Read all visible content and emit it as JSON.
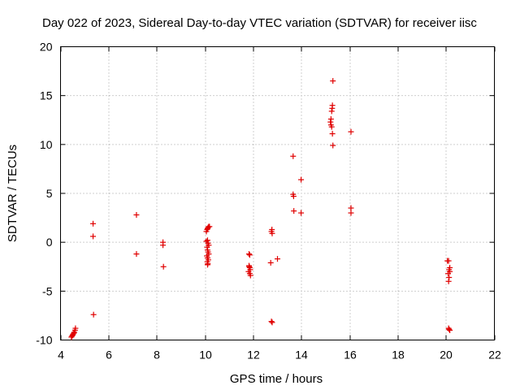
{
  "chart_data": {
    "type": "scatter",
    "title": "Day 022 of 2023, Sidereal Day-to-day VTEC variation (SDTVAR) for receiver iisc",
    "xlabel": "GPS time / hours",
    "ylabel": "SDTVAR / TECUs",
    "xlim": [
      4,
      22
    ],
    "ylim": [
      -10,
      20
    ],
    "xticks": [
      4,
      6,
      8,
      10,
      12,
      14,
      16,
      18,
      20,
      22
    ],
    "yticks": [
      -10,
      -5,
      0,
      5,
      10,
      15,
      20
    ],
    "grid": true,
    "marker": "+",
    "color": "#e00000",
    "series": [
      {
        "name": "SDTVAR",
        "points": [
          [
            4.45,
            -9.7
          ],
          [
            4.48,
            -9.6
          ],
          [
            4.5,
            -9.5
          ],
          [
            4.52,
            -9.4
          ],
          [
            4.55,
            -9.3
          ],
          [
            4.57,
            -9.2
          ],
          [
            4.6,
            -9.0
          ],
          [
            4.62,
            -8.8
          ],
          [
            5.35,
            1.9
          ],
          [
            5.35,
            0.6
          ],
          [
            5.37,
            -7.4
          ],
          [
            7.15,
            2.8
          ],
          [
            7.15,
            -1.2
          ],
          [
            8.25,
            0.0
          ],
          [
            8.25,
            -0.3
          ],
          [
            8.27,
            -2.5
          ],
          [
            10.05,
            1.1
          ],
          [
            10.08,
            1.3
          ],
          [
            10.1,
            1.4
          ],
          [
            10.12,
            1.5
          ],
          [
            10.15,
            1.6
          ],
          [
            10.18,
            1.6
          ],
          [
            10.05,
            0.1
          ],
          [
            10.1,
            0.2
          ],
          [
            10.12,
            -0.1
          ],
          [
            10.15,
            -0.3
          ],
          [
            10.08,
            -0.5
          ],
          [
            10.1,
            -0.8
          ],
          [
            10.12,
            -1.0
          ],
          [
            10.15,
            -1.2
          ],
          [
            10.07,
            -1.4
          ],
          [
            10.1,
            -1.6
          ],
          [
            10.13,
            -1.8
          ],
          [
            10.09,
            -2.0
          ],
          [
            10.11,
            -2.2
          ],
          [
            10.1,
            -2.3
          ],
          [
            11.82,
            -1.2
          ],
          [
            11.85,
            -1.3
          ],
          [
            11.82,
            -2.4
          ],
          [
            11.85,
            -2.6
          ],
          [
            11.87,
            -2.8
          ],
          [
            11.8,
            -3.0
          ],
          [
            11.85,
            -3.2
          ],
          [
            11.88,
            -3.4
          ],
          [
            11.83,
            -2.5
          ],
          [
            12.72,
            -2.1
          ],
          [
            12.75,
            1.1
          ],
          [
            12.77,
            1.3
          ],
          [
            12.78,
            0.9
          ],
          [
            12.75,
            -8.1
          ],
          [
            12.78,
            -8.2
          ],
          [
            13.0,
            -1.7
          ],
          [
            13.65,
            8.8
          ],
          [
            13.65,
            4.9
          ],
          [
            13.67,
            4.7
          ],
          [
            13.68,
            3.2
          ],
          [
            13.98,
            6.4
          ],
          [
            13.98,
            3.0
          ],
          [
            15.2,
            12.3
          ],
          [
            15.22,
            12.0
          ],
          [
            15.25,
            11.8
          ],
          [
            15.22,
            12.6
          ],
          [
            15.25,
            13.4
          ],
          [
            15.27,
            13.7
          ],
          [
            15.28,
            14.0
          ],
          [
            15.3,
            16.5
          ],
          [
            15.28,
            11.1
          ],
          [
            15.3,
            9.9
          ],
          [
            16.05,
            11.3
          ],
          [
            16.05,
            3.5
          ],
          [
            16.05,
            3.0
          ],
          [
            20.05,
            -1.9
          ],
          [
            20.1,
            -1.9
          ],
          [
            20.12,
            -2.8
          ],
          [
            20.15,
            -3.0
          ],
          [
            20.08,
            -3.2
          ],
          [
            20.12,
            -3.6
          ],
          [
            20.1,
            -4.0
          ],
          [
            20.15,
            -2.6
          ],
          [
            20.12,
            -8.9
          ],
          [
            20.15,
            -9.0
          ],
          [
            20.1,
            -8.8
          ]
        ]
      }
    ]
  }
}
